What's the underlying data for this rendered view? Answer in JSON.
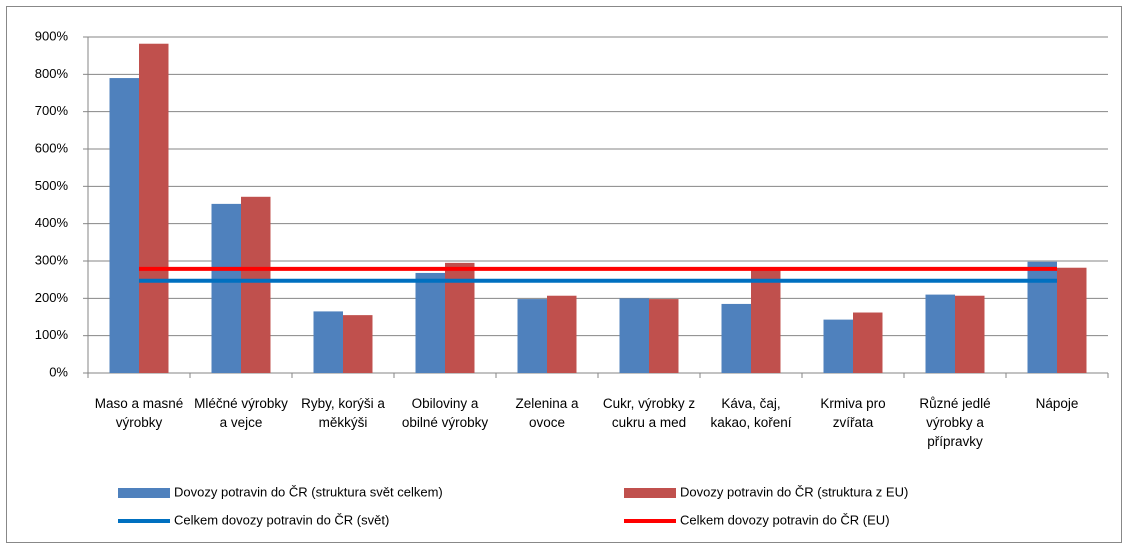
{
  "chart_data": {
    "type": "bar",
    "categories": [
      "Maso a masné výrobky",
      "Mléčné výrobky a vejce",
      "Ryby, korýši a měkkýši",
      "Obiloviny a obilné výrobky",
      "Zelenina a ovoce",
      "Cukr, výrobky z cukru a med",
      "Káva, čaj, kakao, koření",
      "Krmiva pro zvířata",
      "Různé jedlé výrobky a přípravky",
      "Nápoje"
    ],
    "series": [
      {
        "name": "Dovozy potravin do ČR (struktura svět celkem)",
        "type": "bar",
        "color": "#4f81bd",
        "values": [
          790,
          453,
          165,
          268,
          198,
          200,
          185,
          143,
          210,
          298
        ]
      },
      {
        "name": "Dovozy potravin do ČR (struktura z EU)",
        "type": "bar",
        "color": "#c0504d",
        "values": [
          882,
          472,
          155,
          295,
          207,
          198,
          283,
          162,
          207,
          282
        ]
      },
      {
        "name": "Celkem dovozy potravin do ČR (svět)",
        "type": "line",
        "color": "#0070c0",
        "values": [
          247,
          247,
          247,
          247,
          247,
          247,
          247,
          247,
          247,
          247
        ]
      },
      {
        "name": "Celkem dovozy potravin do ČR (EU)",
        "type": "line",
        "color": "#ff0000",
        "values": [
          279,
          279,
          279,
          279,
          279,
          279,
          279,
          279,
          279,
          279
        ]
      }
    ],
    "ylim": [
      0,
      900
    ],
    "yticks": [
      {
        "value": 0,
        "label": "0%"
      },
      {
        "value": 100,
        "label": "100%"
      },
      {
        "value": 200,
        "label": "200%"
      },
      {
        "value": 300,
        "label": "300%"
      },
      {
        "value": 400,
        "label": "400%"
      },
      {
        "value": 500,
        "label": "500%"
      },
      {
        "value": 600,
        "label": "600%"
      },
      {
        "value": 700,
        "label": "700%"
      },
      {
        "value": 800,
        "label": "800%"
      },
      {
        "value": 900,
        "label": "900%"
      }
    ],
    "grid": true
  }
}
